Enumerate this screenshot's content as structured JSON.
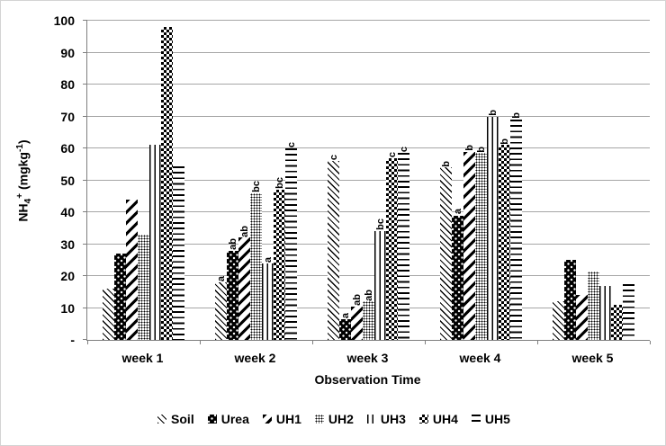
{
  "figure": {
    "background": "#ffffff",
    "border_color": "#d4d4d4"
  },
  "colors": {
    "gridline": "#a6a6a6",
    "axis": "#7f7f7f",
    "text": "#000000",
    "bar_fill": "#000000"
  },
  "y_axis": {
    "title": "NH4+ (mgkg-1)",
    "title_parts": {
      "base": "NH",
      "sub": "4",
      "sup": "+",
      "unit_open": " (mgkg",
      "unit_exp": "-1",
      "unit_close": ")"
    },
    "tick_values": [
      100,
      90,
      80,
      70,
      60,
      50,
      40,
      30,
      20,
      10,
      0
    ],
    "tick_labels": [
      "100",
      "90",
      "80",
      "70",
      "60",
      "50",
      "40",
      "30",
      "20",
      "10",
      "-"
    ]
  },
  "x_axis": {
    "title": "Observation Time",
    "categories": [
      "week 1",
      "week 2",
      "week 3",
      "week 4",
      "week 5"
    ]
  },
  "legend": {
    "items": [
      {
        "label": "Soil",
        "pattern": "diag-back"
      },
      {
        "label": "Urea",
        "pattern": "black-dots"
      },
      {
        "label": "UH1",
        "pattern": "diag-fwd"
      },
      {
        "label": "UH2",
        "pattern": "fine-dots"
      },
      {
        "label": "UH3",
        "pattern": "vlines"
      },
      {
        "label": "UH4",
        "pattern": "checker"
      },
      {
        "label": "UH5",
        "pattern": "hlines"
      }
    ]
  },
  "chart_data": {
    "type": "bar",
    "title": "",
    "xlabel": "Observation Time",
    "ylabel": "NH4+ (mgkg-1)",
    "ylim": [
      0,
      100
    ],
    "ytick_step": 10,
    "grid": true,
    "legend_position": "bottom",
    "categories": [
      "week 1",
      "week 2",
      "week 3",
      "week 4",
      "week 5"
    ],
    "series": [
      {
        "name": "Soil",
        "pattern": "diag-back",
        "values": [
          16,
          18,
          56,
          54,
          12
        ],
        "sig_labels": [
          "",
          "a",
          "c",
          "b",
          ""
        ]
      },
      {
        "name": "Urea",
        "pattern": "black-dots",
        "values": [
          27,
          28,
          6.5,
          39,
          25
        ],
        "sig_labels": [
          "",
          "ab",
          "a",
          "a",
          ""
        ]
      },
      {
        "name": "UH1",
        "pattern": "diag-fwd",
        "values": [
          44,
          32,
          10.5,
          59,
          14
        ],
        "sig_labels": [
          "",
          "ab",
          "ab",
          "b",
          ""
        ]
      },
      {
        "name": "UH2",
        "pattern": "fine-dots",
        "values": [
          33,
          46,
          12,
          58.5,
          21.5
        ],
        "sig_labels": [
          "",
          "bc",
          "ab",
          "b",
          ""
        ]
      },
      {
        "name": "UH3",
        "pattern": "vlines",
        "values": [
          61,
          24,
          34,
          70,
          17
        ],
        "sig_labels": [
          "",
          "a",
          "bc",
          "b",
          ""
        ]
      },
      {
        "name": "UH4",
        "pattern": "checker",
        "values": [
          98,
          47,
          57,
          61,
          11
        ],
        "sig_labels": [
          "",
          "bc",
          "c",
          "b",
          ""
        ]
      },
      {
        "name": "UH5",
        "pattern": "hlines",
        "values": [
          54.5,
          60,
          58.5,
          69,
          17.5
        ],
        "sig_labels": [
          "",
          "c",
          "c",
          "b",
          ""
        ]
      }
    ]
  }
}
